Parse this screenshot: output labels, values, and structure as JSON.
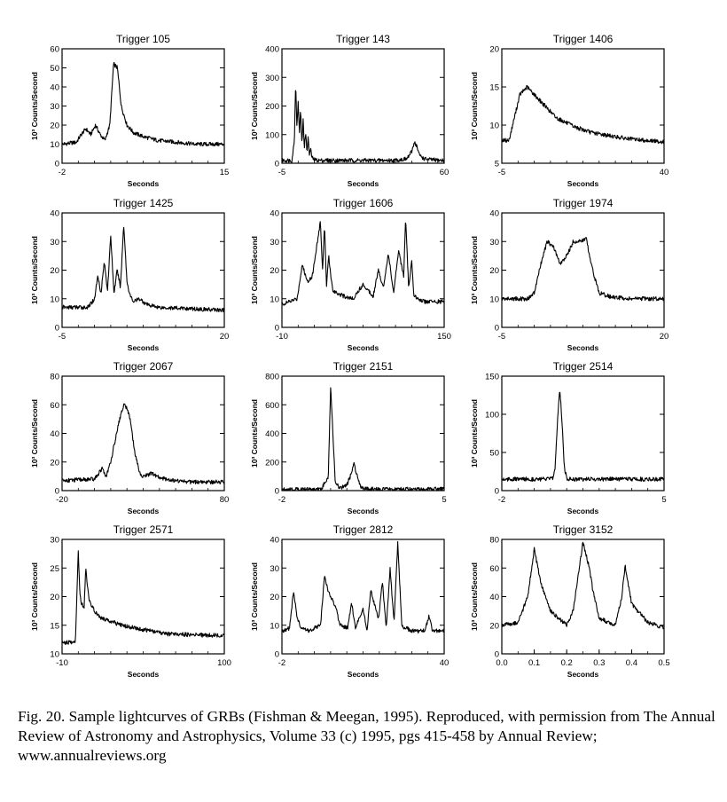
{
  "caption": "Fig. 20. Sample lightcurves of GRBs (Fishman & Meegan, 1995). Reproduced, with permission from The Annual Review of Astronomy and Astrophysics, Volume 33 (c) 1995, pgs 415-458 by Annual Review; www.annualreviews.org",
  "chart_data": [
    {
      "type": "line",
      "title": "Trigger 105",
      "xlabel": "Seconds",
      "ylabel": "10³ Counts/Second",
      "xlim": [
        -2,
        15
      ],
      "ylim": [
        0,
        60
      ],
      "xticks": [
        "-2",
        "15"
      ],
      "yticks": [
        0,
        10,
        20,
        30,
        40,
        50,
        60
      ],
      "series": [
        {
          "x": [
            -2,
            -0.5,
            0,
            0.5,
            1,
            1.5,
            2,
            2.5,
            3,
            3.4,
            3.8,
            4.2,
            4.8,
            5.5,
            6.5,
            8,
            10,
            12,
            15
          ],
          "y": [
            10,
            11,
            15,
            18,
            15,
            20,
            15,
            12,
            20,
            52,
            50,
            30,
            20,
            16,
            14,
            12,
            11,
            10,
            10
          ]
        }
      ]
    },
    {
      "type": "line",
      "title": "Trigger 143",
      "xlabel": "Seconds",
      "ylabel": "10³ Counts/Second",
      "xlim": [
        -5,
        60
      ],
      "ylim": [
        0,
        400
      ],
      "xticks": [
        "-5",
        "60"
      ],
      "yticks": [
        0,
        100,
        200,
        300,
        400
      ],
      "series": [
        {
          "x": [
            -5,
            -1,
            0,
            0.5,
            1,
            1.5,
            2,
            2.5,
            3,
            3.5,
            4,
            4.5,
            5,
            5.5,
            6,
            6.5,
            7,
            8,
            10,
            15,
            25,
            40,
            45,
            47,
            48,
            49,
            50,
            52,
            55,
            58,
            60
          ],
          "y": [
            10,
            10,
            80,
            290,
            120,
            220,
            100,
            190,
            60,
            160,
            50,
            110,
            40,
            90,
            30,
            50,
            20,
            12,
            10,
            10,
            10,
            10,
            15,
            40,
            75,
            60,
            30,
            15,
            12,
            10,
            10
          ]
        }
      ]
    },
    {
      "type": "line",
      "title": "Trigger 1406",
      "xlabel": "Seconds",
      "ylabel": "10³ Counts/Second",
      "xlim": [
        -5,
        40
      ],
      "ylim": [
        5,
        20
      ],
      "xticks": [
        "-5",
        "40"
      ],
      "yticks": [
        5,
        10,
        15,
        20
      ],
      "series": [
        {
          "x": [
            -5,
            -3,
            -2,
            0,
            2,
            3,
            5,
            8,
            10,
            15,
            20,
            25,
            30,
            35,
            40
          ],
          "y": [
            8,
            8,
            10,
            14,
            15,
            14.5,
            13.5,
            12,
            11,
            9.8,
            9,
            8.6,
            8.2,
            8,
            7.8
          ]
        }
      ]
    },
    {
      "type": "line",
      "title": "Trigger 1425",
      "xlabel": "Seconds",
      "ylabel": "10³ Counts/Second",
      "xlim": [
        -5,
        20
      ],
      "ylim": [
        0,
        40
      ],
      "xticks": [
        "-5",
        "20"
      ],
      "yticks": [
        0,
        10,
        20,
        30,
        40
      ],
      "series": [
        {
          "x": [
            -5,
            -1,
            0,
            0.5,
            1,
            1.5,
            2,
            2.5,
            3,
            3.5,
            4,
            4.5,
            5,
            5.5,
            6,
            7,
            8,
            10,
            15,
            20
          ],
          "y": [
            7,
            7,
            10,
            18,
            12,
            23,
            13,
            32,
            12,
            20,
            14,
            36,
            16,
            11,
            9,
            10,
            8,
            7,
            6.5,
            6
          ]
        }
      ]
    },
    {
      "type": "line",
      "title": "Trigger 1606",
      "xlabel": "Seconds",
      "ylabel": "10³ Counts/Second",
      "xlim": [
        -10,
        150
      ],
      "ylim": [
        0,
        40
      ],
      "xticks": [
        "-10",
        "150"
      ],
      "yticks": [
        0,
        10,
        20,
        30,
        40
      ],
      "series": [
        {
          "x": [
            -10,
            5,
            10,
            15,
            20,
            25,
            28,
            30,
            32,
            34,
            36,
            40,
            50,
            60,
            70,
            80,
            85,
            90,
            95,
            100,
            105,
            110,
            112,
            115,
            118,
            120,
            125,
            130,
            140,
            150
          ],
          "y": [
            8,
            10,
            22,
            16,
            18,
            30,
            37,
            20,
            36,
            14,
            25,
            13,
            11,
            10,
            15,
            11,
            20,
            14,
            26,
            12,
            27,
            18,
            38,
            14,
            23,
            11,
            10,
            9,
            9,
            9
          ]
        }
      ]
    },
    {
      "type": "line",
      "title": "Trigger 1974",
      "xlabel": "Seconds",
      "ylabel": "10³ Counts/Second",
      "xlim": [
        -5,
        20
      ],
      "ylim": [
        0,
        40
      ],
      "xticks": [
        "-5",
        "20"
      ],
      "yticks": [
        0,
        10,
        20,
        30,
        40
      ],
      "series": [
        {
          "x": [
            -5,
            -1,
            0,
            1,
            2,
            3,
            4,
            5,
            6,
            7,
            8,
            9,
            10,
            12,
            15,
            20
          ],
          "y": [
            10,
            10,
            12,
            22,
            30,
            28,
            22,
            25,
            30,
            30,
            31,
            20,
            12,
            10.5,
            10,
            10
          ]
        }
      ]
    },
    {
      "type": "line",
      "title": "Trigger 2067",
      "xlabel": "Seconds",
      "ylabel": "10³ Counts/Second",
      "xlim": [
        -20,
        80
      ],
      "ylim": [
        0,
        80
      ],
      "xticks": [
        "-20",
        "80"
      ],
      "yticks": [
        0,
        20,
        40,
        60,
        80
      ],
      "series": [
        {
          "x": [
            -20,
            0,
            5,
            7,
            10,
            15,
            18,
            20,
            22,
            25,
            28,
            30,
            35,
            40,
            50,
            60,
            80
          ],
          "y": [
            7,
            8,
            16,
            9,
            20,
            48,
            60,
            58,
            50,
            25,
            12,
            10,
            12,
            9,
            7,
            6,
            6
          ]
        }
      ]
    },
    {
      "type": "line",
      "title": "Trigger 2151",
      "xlabel": "Seconds",
      "ylabel": "10³ Counts/Second",
      "xlim": [
        -2,
        5
      ],
      "ylim": [
        0,
        800
      ],
      "xticks": [
        "-2",
        "5"
      ],
      "yticks": [
        0,
        200,
        400,
        600,
        800
      ],
      "series": [
        {
          "x": [
            -2,
            -0.3,
            0,
            0.1,
            0.2,
            0.3,
            0.5,
            0.8,
            1,
            1.1,
            1.2,
            1.4,
            1.6,
            2,
            3,
            5
          ],
          "y": [
            10,
            10,
            100,
            730,
            400,
            60,
            15,
            40,
            120,
            195,
            130,
            30,
            12,
            10,
            10,
            10
          ]
        }
      ]
    },
    {
      "type": "line",
      "title": "Trigger 2514",
      "xlabel": "Seconds",
      "ylabel": "10³ Counts/Second",
      "xlim": [
        -2,
        5
      ],
      "ylim": [
        0,
        150
      ],
      "xticks": [
        "-2",
        "5"
      ],
      "yticks": [
        0,
        50,
        100,
        150
      ],
      "series": [
        {
          "x": [
            -2,
            0,
            0.2,
            0.3,
            0.4,
            0.5,
            0.6,
            0.7,
            0.8,
            1,
            2,
            3,
            4,
            5
          ],
          "y": [
            15,
            15,
            16,
            30,
            90,
            135,
            90,
            30,
            16,
            15,
            15,
            15,
            15,
            15
          ]
        }
      ]
    },
    {
      "type": "line",
      "title": "Trigger 2571",
      "xlabel": "Seconds",
      "ylabel": "10³ Counts/Second",
      "xlim": [
        -10,
        100
      ],
      "ylim": [
        10,
        30
      ],
      "xticks": [
        "-10",
        "100"
      ],
      "yticks": [
        10,
        15,
        20,
        25,
        30
      ],
      "series": [
        {
          "x": [
            -10,
            -1,
            0,
            1,
            2,
            3,
            5,
            6,
            8,
            10,
            12,
            15,
            20,
            30,
            40,
            50,
            60,
            80,
            100
          ],
          "y": [
            12,
            12,
            20,
            28,
            21,
            19,
            18,
            25,
            20,
            18.5,
            17.5,
            16.5,
            16,
            15,
            14.5,
            14,
            13.5,
            13.3,
            13.2
          ]
        }
      ]
    },
    {
      "type": "line",
      "title": "Trigger 2812",
      "xlabel": "Seconds",
      "ylabel": "10³ Counts/Second",
      "xlim": [
        -2,
        40
      ],
      "ylim": [
        0,
        40
      ],
      "xticks": [
        "-2",
        "40"
      ],
      "yticks": [
        0,
        10,
        20,
        30,
        40
      ],
      "series": [
        {
          "x": [
            -2,
            0,
            1,
            2,
            3,
            5,
            8,
            9,
            10,
            12,
            13,
            15,
            16,
            17,
            19,
            20,
            21,
            23,
            24,
            25,
            26,
            27,
            28,
            29,
            30,
            32,
            35,
            36,
            37,
            38,
            40
          ],
          "y": [
            8,
            9,
            22,
            12,
            9,
            8,
            10,
            27,
            22,
            16,
            10,
            9,
            18,
            9,
            16,
            8,
            22,
            12,
            25,
            9,
            30,
            11,
            39,
            10,
            9,
            8,
            8,
            13,
            8,
            8,
            8
          ]
        }
      ]
    },
    {
      "type": "line",
      "title": "Trigger 3152",
      "xlabel": "Seconds",
      "ylabel": "10³ Counts/Second",
      "xlim": [
        0,
        0.5
      ],
      "ylim": [
        0,
        80
      ],
      "xticks": [
        "0.0",
        "0.1",
        "0.2",
        "0.3",
        "0.4",
        "0.5"
      ],
      "yticks": [
        0,
        20,
        40,
        60,
        80
      ],
      "series": [
        {
          "x": [
            0,
            0.05,
            0.08,
            0.1,
            0.12,
            0.15,
            0.2,
            0.22,
            0.25,
            0.27,
            0.28,
            0.3,
            0.33,
            0.35,
            0.37,
            0.38,
            0.4,
            0.45,
            0.5
          ],
          "y": [
            20,
            22,
            40,
            73,
            50,
            30,
            20,
            30,
            78,
            60,
            45,
            25,
            22,
            20,
            40,
            62,
            35,
            22,
            18
          ]
        }
      ]
    }
  ]
}
